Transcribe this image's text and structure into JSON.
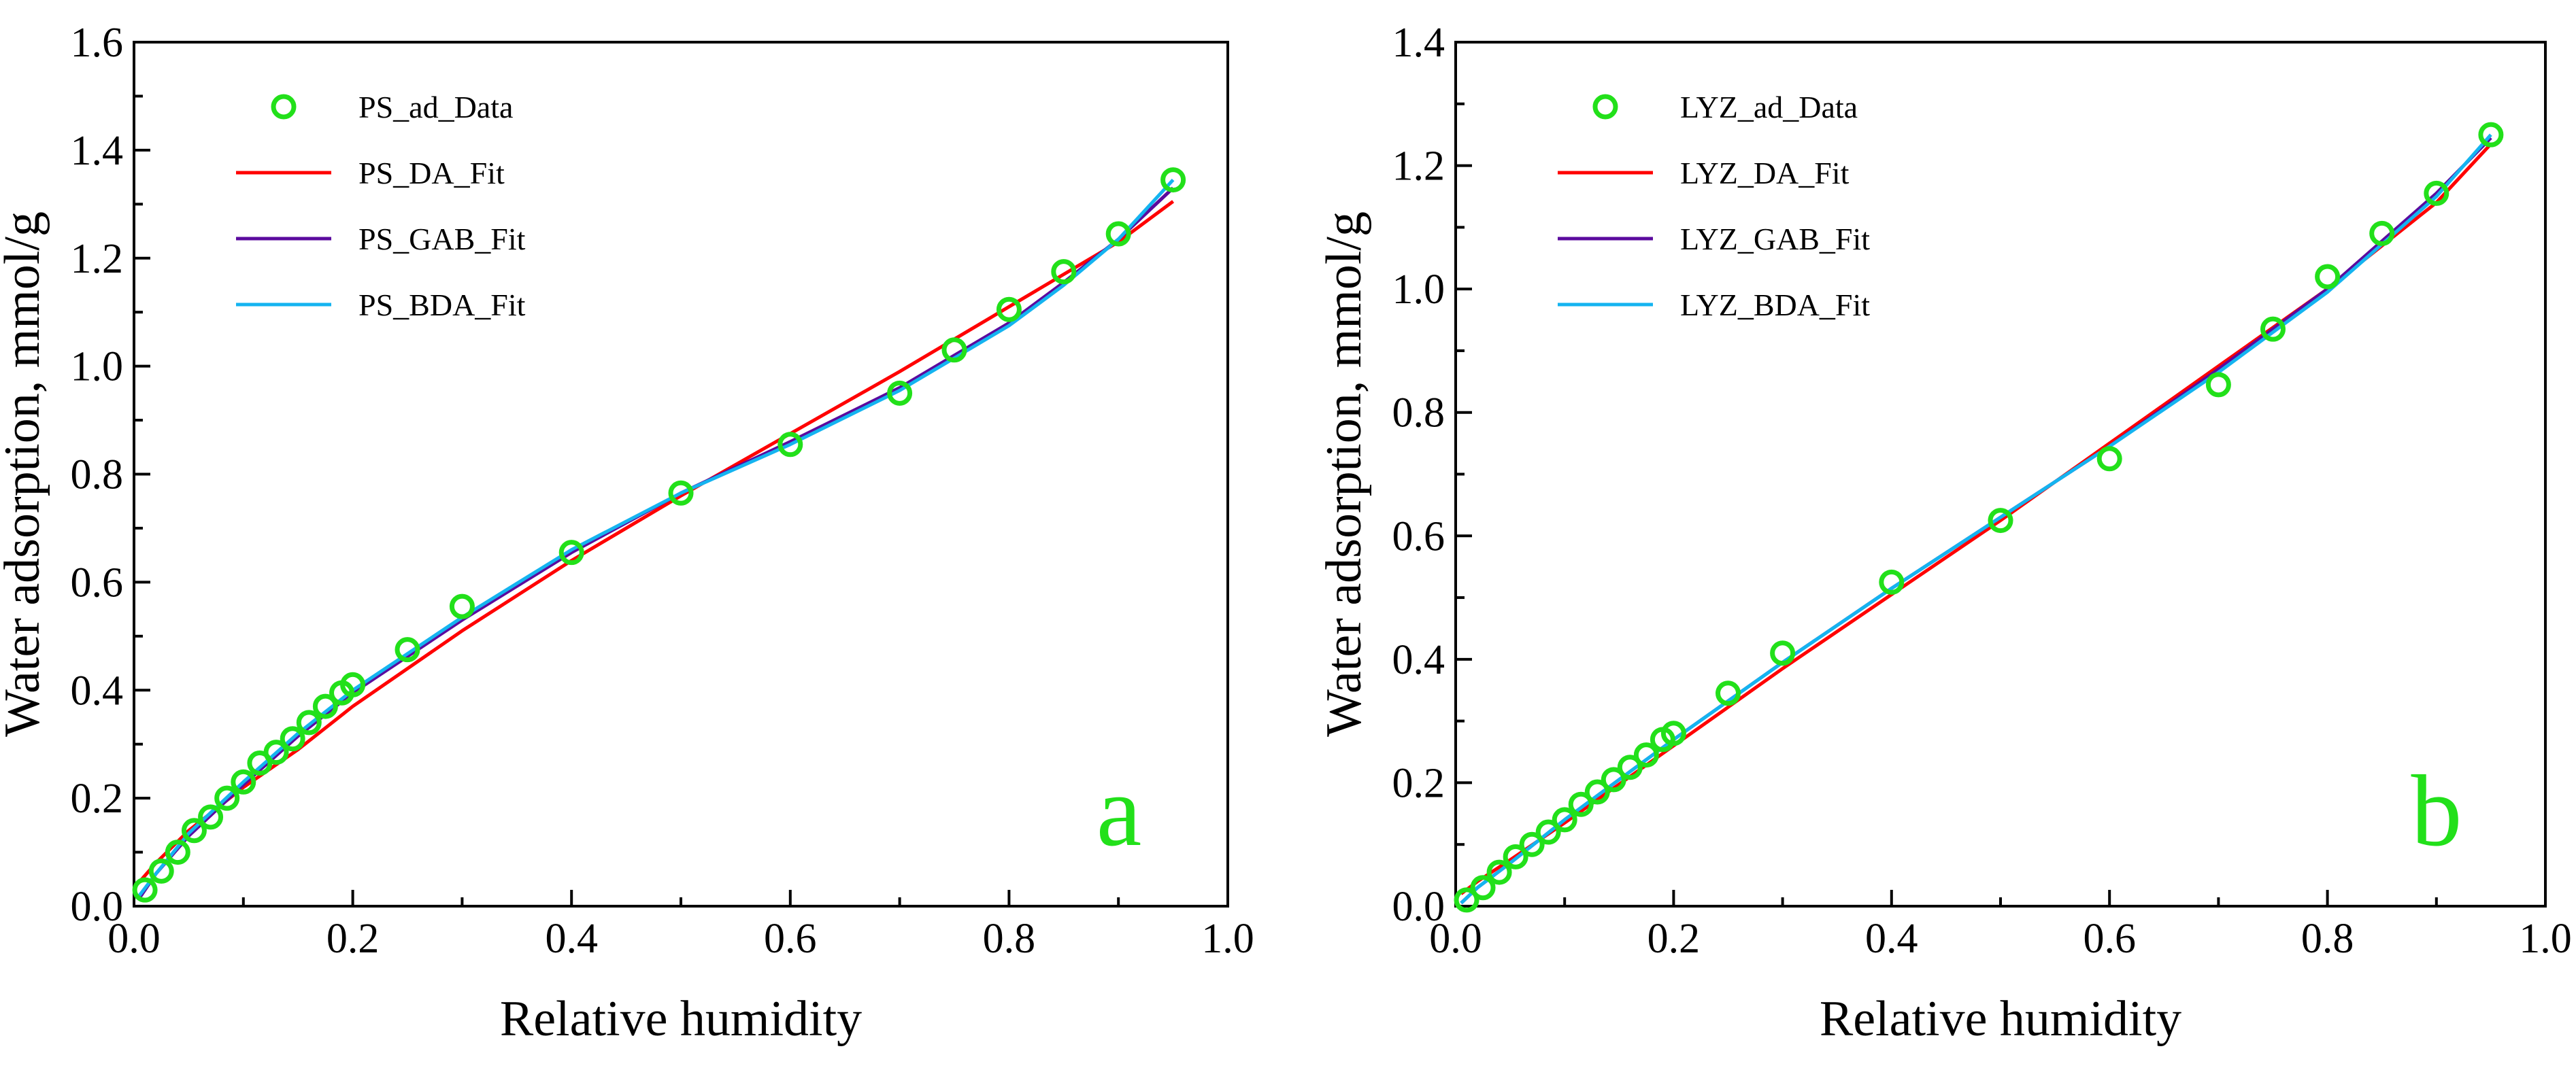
{
  "colors": {
    "data_marker": "#22e01a",
    "panel_letter": "#22e01a",
    "da_fit": "#ff0000",
    "gab_fit": "#5b0a9e",
    "bda_fit": "#14b4f0",
    "axes": "#000000",
    "background": "#ffffff"
  },
  "chart_data": [
    {
      "panel": "a",
      "type": "scatter",
      "xlabel": "Relative humidity",
      "ylabel": "Water adsorption, mmol/g",
      "xlim": [
        0.0,
        1.0
      ],
      "ylim": [
        0.0,
        1.6
      ],
      "xticks": [
        "0.0",
        "0.2",
        "0.4",
        "0.6",
        "0.8",
        "1.0"
      ],
      "yticks": [
        "0.0",
        "0.2",
        "0.4",
        "0.6",
        "0.8",
        "1.0",
        "1.2",
        "1.4",
        "1.6"
      ],
      "grid": false,
      "legend_position": "top-left",
      "legend": [
        "PS_ad_Data",
        "PS_DA_Fit",
        "PS_GAB_Fit",
        "PS_BDA_Fit"
      ],
      "series": [
        {
          "name": "PS_ad_Data",
          "kind": "markers",
          "color": "#22e01a",
          "x": [
            0.01,
            0.025,
            0.04,
            0.055,
            0.07,
            0.085,
            0.1,
            0.115,
            0.13,
            0.145,
            0.16,
            0.175,
            0.19,
            0.2,
            0.25,
            0.3,
            0.4,
            0.5,
            0.6,
            0.7,
            0.75,
            0.8,
            0.85,
            0.9,
            0.95
          ],
          "y": [
            0.03,
            0.065,
            0.1,
            0.14,
            0.165,
            0.2,
            0.23,
            0.265,
            0.285,
            0.31,
            0.34,
            0.37,
            0.395,
            0.41,
            0.475,
            0.555,
            0.655,
            0.765,
            0.855,
            0.95,
            1.03,
            1.105,
            1.175,
            1.245,
            1.345
          ]
        },
        {
          "name": "PS_DA_Fit",
          "kind": "line",
          "color": "#ff0000",
          "x": [
            0.005,
            0.02,
            0.05,
            0.1,
            0.15,
            0.2,
            0.3,
            0.4,
            0.5,
            0.6,
            0.7,
            0.8,
            0.9,
            0.95
          ],
          "y": [
            0.045,
            0.08,
            0.14,
            0.22,
            0.29,
            0.37,
            0.51,
            0.64,
            0.76,
            0.875,
            0.99,
            1.11,
            1.23,
            1.305
          ]
        },
        {
          "name": "PS_GAB_Fit",
          "kind": "line",
          "color": "#5b0a9e",
          "x": [
            0.005,
            0.02,
            0.05,
            0.1,
            0.15,
            0.2,
            0.3,
            0.4,
            0.5,
            0.6,
            0.7,
            0.8,
            0.85,
            0.9,
            0.95
          ],
          "y": [
            0.015,
            0.06,
            0.13,
            0.225,
            0.315,
            0.395,
            0.53,
            0.655,
            0.765,
            0.86,
            0.96,
            1.08,
            1.155,
            1.235,
            1.33
          ]
        },
        {
          "name": "PS_BDA_Fit",
          "kind": "line",
          "color": "#14b4f0",
          "x": [
            0.005,
            0.02,
            0.05,
            0.1,
            0.15,
            0.2,
            0.3,
            0.4,
            0.5,
            0.6,
            0.7,
            0.8,
            0.85,
            0.9,
            0.95
          ],
          "y": [
            0.02,
            0.06,
            0.135,
            0.23,
            0.32,
            0.4,
            0.535,
            0.66,
            0.765,
            0.855,
            0.955,
            1.075,
            1.15,
            1.235,
            1.345
          ]
        }
      ]
    },
    {
      "panel": "b",
      "type": "scatter",
      "xlabel": "Relative humidity",
      "ylabel": "Water adsorption, mmol/g",
      "xlim": [
        0.0,
        1.0
      ],
      "ylim": [
        0.0,
        1.4
      ],
      "xticks": [
        "0.0",
        "0.2",
        "0.4",
        "0.6",
        "0.8",
        "1.0"
      ],
      "yticks": [
        "0.0",
        "0.2",
        "0.4",
        "0.6",
        "0.8",
        "1.0",
        "1.2",
        "1.4"
      ],
      "grid": false,
      "legend_position": "top-left",
      "legend": [
        "LYZ_ad_Data",
        "LYZ_DA_Fit",
        "LYZ_GAB_Fit",
        "LYZ_BDA_Fit"
      ],
      "series": [
        {
          "name": "LYZ_ad_Data",
          "kind": "markers",
          "color": "#22e01a",
          "x": [
            0.01,
            0.025,
            0.04,
            0.055,
            0.07,
            0.085,
            0.1,
            0.115,
            0.13,
            0.145,
            0.16,
            0.175,
            0.19,
            0.2,
            0.25,
            0.3,
            0.4,
            0.5,
            0.6,
            0.7,
            0.75,
            0.8,
            0.85,
            0.9,
            0.95
          ],
          "y": [
            0.01,
            0.03,
            0.055,
            0.08,
            0.1,
            0.12,
            0.14,
            0.165,
            0.185,
            0.205,
            0.225,
            0.245,
            0.27,
            0.28,
            0.345,
            0.41,
            0.525,
            0.625,
            0.725,
            0.845,
            0.935,
            1.02,
            1.09,
            1.155,
            1.25
          ]
        },
        {
          "name": "LYZ_DA_Fit",
          "kind": "line",
          "color": "#ff0000",
          "x": [
            0.005,
            0.02,
            0.05,
            0.1,
            0.2,
            0.3,
            0.4,
            0.5,
            0.6,
            0.7,
            0.8,
            0.9,
            0.95
          ],
          "y": [
            0.02,
            0.04,
            0.075,
            0.135,
            0.26,
            0.385,
            0.505,
            0.625,
            0.75,
            0.875,
            1.0,
            1.14,
            1.235
          ]
        },
        {
          "name": "LYZ_GAB_Fit",
          "kind": "line",
          "color": "#5b0a9e",
          "x": [
            0.005,
            0.02,
            0.05,
            0.1,
            0.2,
            0.3,
            0.4,
            0.5,
            0.6,
            0.7,
            0.8,
            0.9,
            0.95
          ],
          "y": [
            0.005,
            0.03,
            0.07,
            0.14,
            0.27,
            0.395,
            0.515,
            0.63,
            0.745,
            0.87,
            1.0,
            1.155,
            1.245
          ]
        },
        {
          "name": "LYZ_BDA_Fit",
          "kind": "line",
          "color": "#14b4f0",
          "x": [
            0.005,
            0.02,
            0.05,
            0.1,
            0.2,
            0.3,
            0.4,
            0.5,
            0.6,
            0.7,
            0.8,
            0.9,
            0.95
          ],
          "y": [
            0.005,
            0.03,
            0.07,
            0.14,
            0.27,
            0.395,
            0.515,
            0.63,
            0.745,
            0.865,
            0.995,
            1.15,
            1.25
          ]
        }
      ]
    }
  ]
}
